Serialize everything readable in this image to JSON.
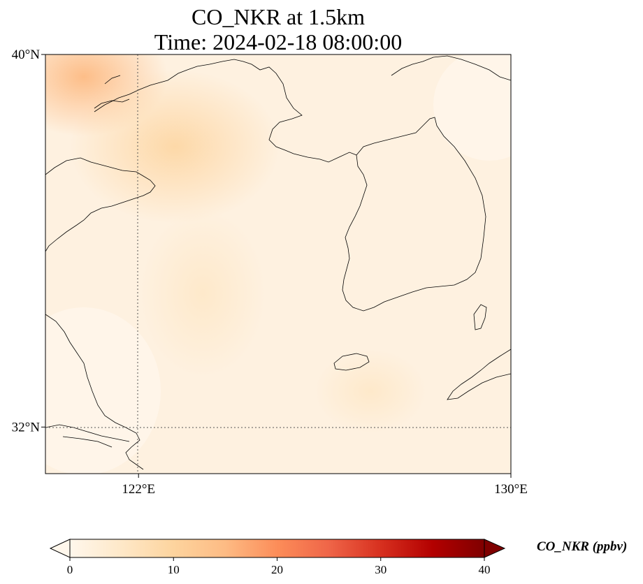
{
  "title": {
    "line1": "CO_NKR at 1.5km",
    "line2": "Time: 2024-02-18 08:00:00"
  },
  "map": {
    "lon_range": [
      120.0,
      130.0
    ],
    "lat_range": [
      31.0,
      40.0
    ],
    "gridlines": {
      "lon": [
        122
      ],
      "lat": [
        32
      ],
      "style": "dotted"
    },
    "lat_ticks": [
      {
        "value": 40,
        "label": "40°N"
      },
      {
        "value": 32,
        "label": "32°N"
      }
    ],
    "lon_ticks": [
      {
        "value": 122,
        "label": "122°E"
      },
      {
        "value": 130,
        "label": "130°E"
      }
    ],
    "coastline_color": "#000000"
  },
  "colorbar": {
    "label": "CO_NKR (ppbv)",
    "min": 0,
    "max": 40,
    "colormap": "OrRd",
    "colors": [
      "#fff7ec",
      "#fee8c8",
      "#fdd49e",
      "#fdbb84",
      "#fc8d59",
      "#ef6548",
      "#d7301f",
      "#b30000",
      "#7f0000"
    ],
    "extend": "both",
    "ticks": [
      {
        "value": 0,
        "label": "0"
      },
      {
        "value": 10,
        "label": "10"
      },
      {
        "value": 20,
        "label": "20"
      },
      {
        "value": 30,
        "label": "30"
      },
      {
        "value": 40,
        "label": "40"
      }
    ]
  }
}
